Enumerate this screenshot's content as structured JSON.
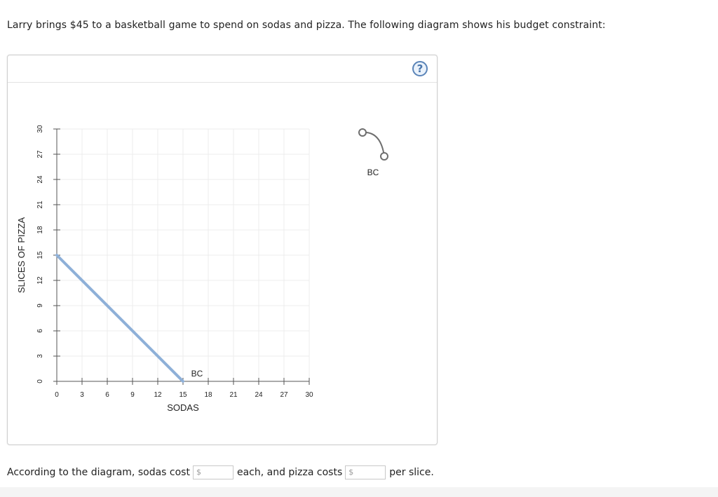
{
  "question": "Larry brings $45 to a basketball game to spend on sodas and pizza. The following diagram shows his budget constraint:",
  "help_label": "?",
  "chart_data": {
    "type": "line",
    "xlabel": "SODAS",
    "ylabel": "SLICES OF PIZZA",
    "xlim": [
      0,
      30
    ],
    "ylim": [
      0,
      30
    ],
    "x_ticks": [
      0,
      3,
      6,
      9,
      12,
      15,
      18,
      21,
      24,
      27,
      30
    ],
    "y_ticks": [
      0,
      3,
      6,
      9,
      12,
      15,
      18,
      21,
      24,
      27,
      30
    ],
    "grid": true,
    "series": [
      {
        "name": "BC",
        "points": [
          [
            0,
            15
          ],
          [
            15,
            0
          ]
        ],
        "color": "#8eb0d8"
      }
    ],
    "legend": {
      "position": "right",
      "entries": [
        {
          "label": "BC",
          "color": "#6e6e6e"
        }
      ]
    }
  },
  "answer": {
    "prefix": "According to the diagram, sodas cost",
    "middle": "each, and pizza costs",
    "suffix": "per slice.",
    "currency_symbol": "$",
    "soda_value": "",
    "pizza_value": ""
  }
}
